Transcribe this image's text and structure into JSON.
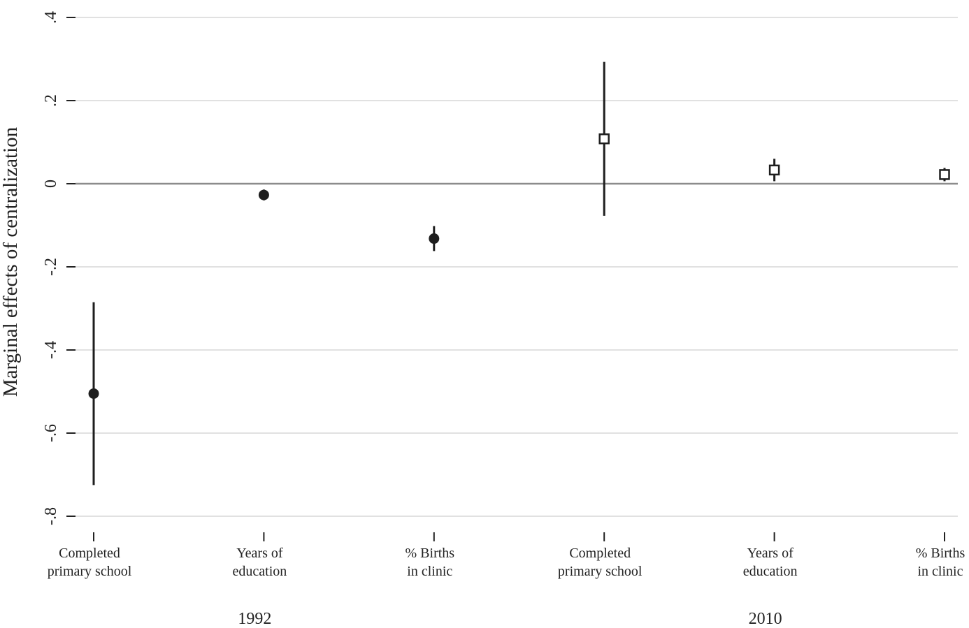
{
  "chart_data": {
    "type": "scatter",
    "ylabel": "Marginal effects of centralization",
    "ylim": [
      -0.8,
      0.4
    ],
    "yticks": [
      {
        "value": 0.4,
        "label": ".4"
      },
      {
        "value": 0.2,
        "label": ".2"
      },
      {
        "value": 0,
        "label": "0"
      },
      {
        "value": -0.2,
        "label": "-.2"
      },
      {
        "value": -0.4,
        "label": "-.4"
      },
      {
        "value": -0.6,
        "label": "-.6"
      },
      {
        "value": -0.8,
        "label": "-.8"
      }
    ],
    "grid": true,
    "reference_line": 0,
    "categories": [
      {
        "line1": "Completed",
        "line2": "primary school"
      },
      {
        "line1": "Years of",
        "line2": "education"
      },
      {
        "line1": "% Births",
        "line2": "in clinic"
      },
      {
        "line1": "Completed",
        "line2": "primary school"
      },
      {
        "line1": "Years of",
        "line2": "education"
      },
      {
        "line1": "% Births",
        "line2": "in clinic"
      }
    ],
    "groups": [
      {
        "label": "1992",
        "categories": [
          0,
          1,
          2
        ]
      },
      {
        "label": "2010",
        "categories": [
          3,
          4,
          5
        ]
      }
    ],
    "points": [
      {
        "category": 0,
        "estimate": -0.505,
        "lower": -0.725,
        "upper": -0.285,
        "marker": "filled-circle"
      },
      {
        "category": 1,
        "estimate": -0.027,
        "lower": -0.04,
        "upper": -0.014,
        "marker": "filled-circle"
      },
      {
        "category": 2,
        "estimate": -0.132,
        "lower": -0.162,
        "upper": -0.102,
        "marker": "filled-circle"
      },
      {
        "category": 3,
        "estimate": 0.108,
        "lower": -0.077,
        "upper": 0.293,
        "marker": "hollow-square"
      },
      {
        "category": 4,
        "estimate": 0.033,
        "lower": 0.006,
        "upper": 0.06,
        "marker": "hollow-square"
      },
      {
        "category": 5,
        "estimate": 0.022,
        "lower": 0.006,
        "upper": 0.038,
        "marker": "hollow-square"
      }
    ],
    "colors": {
      "grid": "#e1e1e1",
      "zero_line": "#8c8c8c",
      "marks": "#1e1e1e",
      "axis": "#222222"
    }
  }
}
